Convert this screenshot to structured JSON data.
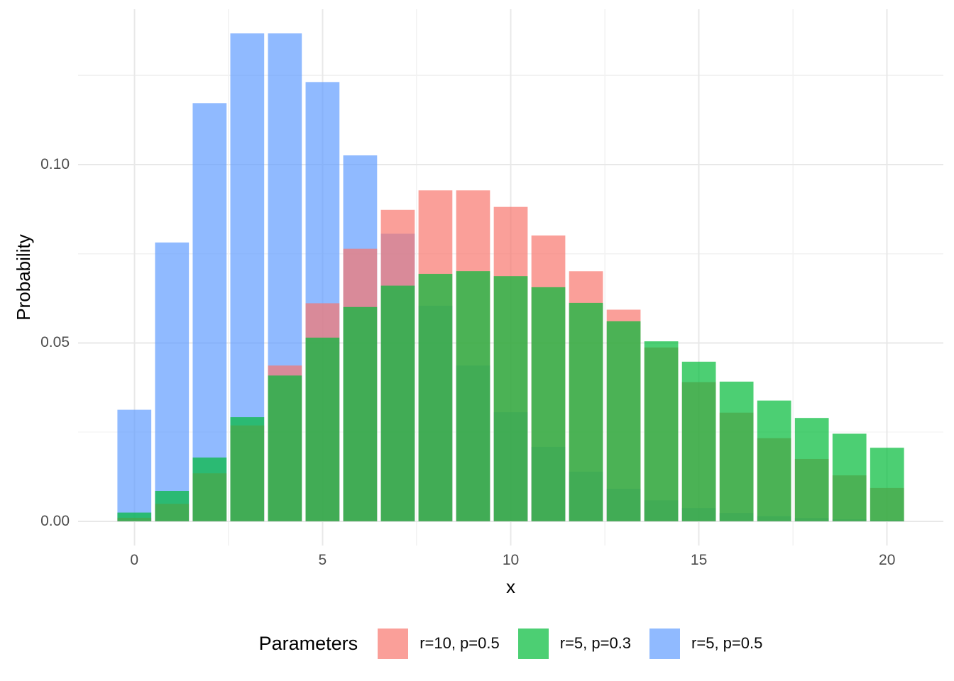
{
  "figure": {
    "background": "#ffffff"
  },
  "chart_data": {
    "type": "bar",
    "title": "",
    "xlabel": "x",
    "ylabel": "Probability",
    "position": "identity",
    "bar_width": 0.9,
    "opacity": 0.7,
    "grid": {
      "major_color": "#e8e8e8",
      "minor_color": "#f2f2f2",
      "grid_on": true
    },
    "axis_text_color": "#4d4d4d",
    "xlim": [
      -1.495,
      21.495
    ],
    "ylim": [
      -0.0068,
      0.1435
    ],
    "x_ticks": [
      0,
      5,
      10,
      15,
      20
    ],
    "x_tick_labels": [
      "0",
      "5",
      "10",
      "15",
      "20"
    ],
    "x_minor_ticks": [
      2.5,
      7.5,
      12.5,
      17.5
    ],
    "y_ticks": [
      0,
      0.05,
      0.1
    ],
    "y_tick_labels": [
      "0.00",
      "0.05",
      "0.10"
    ],
    "y_minor_ticks": [
      0.025,
      0.075,
      0.125
    ],
    "x": [
      0,
      1,
      2,
      3,
      4,
      5,
      6,
      7,
      8,
      9,
      10,
      11,
      12,
      13,
      14,
      15,
      16,
      17,
      18,
      19,
      20
    ],
    "series": [
      {
        "name": "r=10, p=0.5",
        "color": "#F8766D",
        "draw_order": 2,
        "values": [
          0.00098,
          0.00488,
          0.01343,
          0.02686,
          0.04364,
          0.0611,
          0.07637,
          0.08728,
          0.09274,
          0.09274,
          0.0881,
          0.08009,
          0.07008,
          0.0593,
          0.04871,
          0.03897,
          0.03044,
          0.02328,
          0.01746,
          0.01286,
          0.00933
        ]
      },
      {
        "name": "r=5, p=0.3",
        "color": "#00BA38",
        "draw_order": 3,
        "values": [
          0.00243,
          0.00851,
          0.01786,
          0.02917,
          0.04084,
          0.05146,
          0.06004,
          0.06604,
          0.06934,
          0.07011,
          0.06871,
          0.06559,
          0.06121,
          0.05604,
          0.05043,
          0.04472,
          0.03913,
          0.03383,
          0.02895,
          0.02453,
          0.0206
        ]
      },
      {
        "name": "r=5, p=0.5",
        "color": "#619CFF",
        "draw_order": 1,
        "values": [
          0.03125,
          0.07813,
          0.11719,
          0.13672,
          0.13672,
          0.12305,
          0.10254,
          0.08057,
          0.06042,
          0.04364,
          0.03055,
          0.02084,
          0.0139,
          0.00909,
          0.00585,
          0.00371,
          0.00233,
          0.00144,
          0.00088,
          0.00053,
          0.00032
        ]
      }
    ],
    "legend_position": "bottom"
  },
  "legend": {
    "title": "Parameters",
    "items": [
      {
        "label": "r=10, p=0.5",
        "color": "#F8766D"
      },
      {
        "label": "r=5, p=0.3",
        "color": "#00BA38"
      },
      {
        "label": "r=5, p=0.5",
        "color": "#619CFF"
      }
    ]
  }
}
